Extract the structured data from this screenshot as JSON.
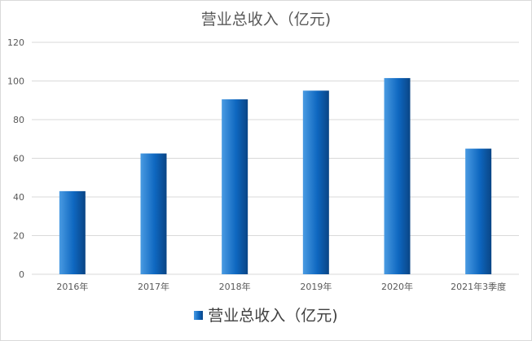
{
  "chart_data": {
    "type": "bar",
    "title": "营业总收入（亿元)",
    "categories": [
      "2016年",
      "2017年",
      "2018年",
      "2019年",
      "2020年",
      "2021年3季度"
    ],
    "series": [
      {
        "name": "营业总收入（亿元)",
        "values": [
          43,
          62.5,
          90.5,
          95,
          101.5,
          65
        ]
      }
    ],
    "xlabel": "",
    "ylabel": "",
    "ylim": [
      0,
      120
    ],
    "yticks": [
      0,
      20,
      40,
      60,
      80,
      100,
      120
    ],
    "grid": true,
    "legend": "bottom",
    "colors": {
      "bar_light": "#3d8fd9",
      "bar_dark": "#0a4a8c",
      "grid": "#d9d9d9",
      "axis_text": "#595959"
    }
  }
}
